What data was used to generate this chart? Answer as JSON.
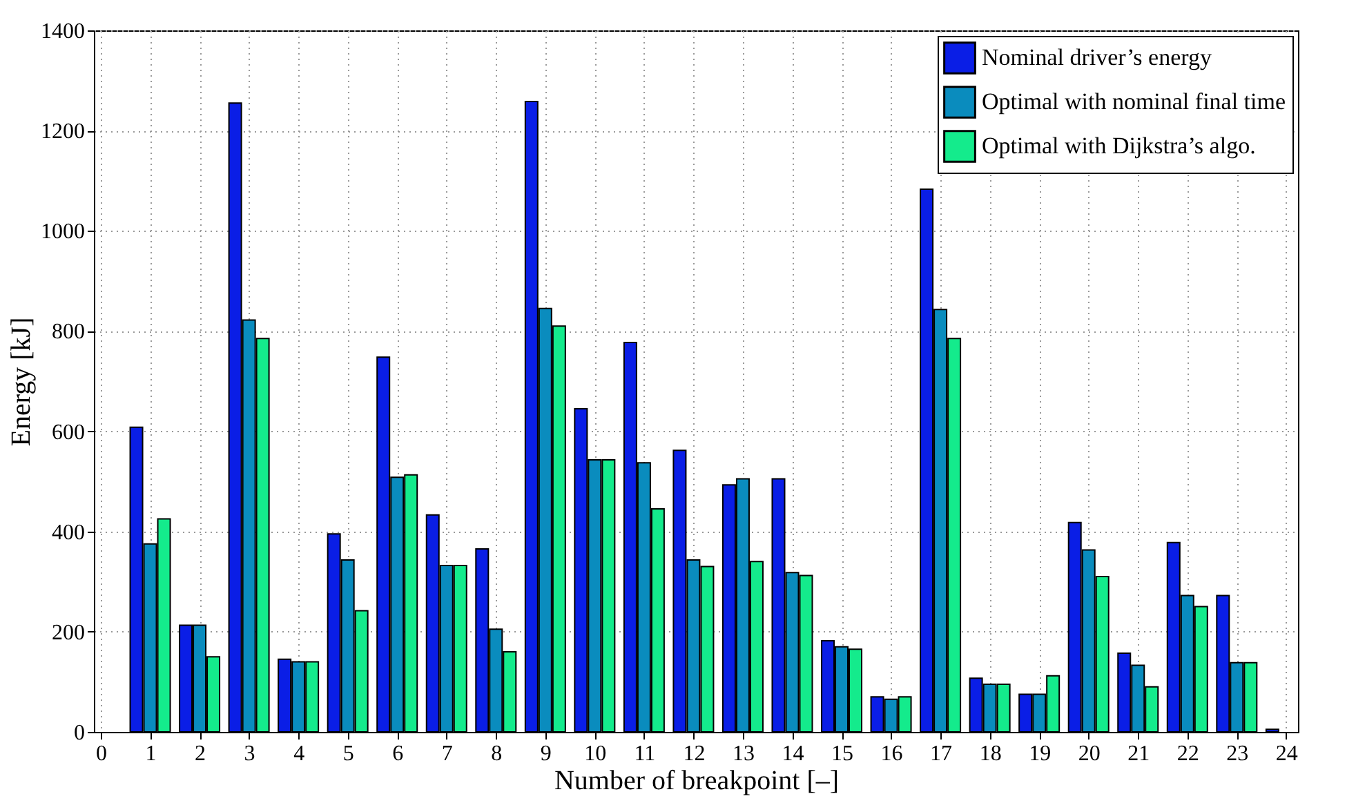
{
  "chart_data": {
    "type": "bar",
    "xlabel": "Number of breakpoint [–]",
    "ylabel": "Energy [kJ]",
    "x": [
      1,
      2,
      3,
      4,
      5,
      6,
      7,
      8,
      9,
      10,
      11,
      12,
      13,
      14,
      15,
      16,
      17,
      18,
      19,
      20,
      21,
      22,
      23,
      24
    ],
    "series": [
      {
        "name": "Nominal driver’s energy",
        "color": "#0a1ee6",
        "values": [
          608,
          213,
          1255,
          145,
          395,
          748,
          433,
          365,
          1258,
          645,
          777,
          562,
          493,
          505,
          182,
          70,
          1083,
          107,
          75,
          418,
          157,
          378,
          272,
          5
        ]
      },
      {
        "name": "Optimal with nominal final time",
        "color": "#0a8cbe",
        "values": [
          375,
          213,
          822,
          140,
          343,
          508,
          332,
          205,
          845,
          543,
          537,
          343,
          505,
          318,
          170,
          65,
          843,
          95,
          75,
          363,
          133,
          272,
          138,
          null
        ]
      },
      {
        "name": "Optimal with Dijkstra’s algo.",
        "color": "#14eb8c",
        "values": [
          425,
          150,
          785,
          140,
          242,
          513,
          332,
          160,
          810,
          543,
          445,
          330,
          340,
          312,
          165,
          70,
          785,
          95,
          112,
          310,
          90,
          250,
          138,
          null
        ]
      }
    ],
    "xlim": [
      0,
      24.1
    ],
    "xticks": [
      0,
      1,
      2,
      3,
      4,
      5,
      6,
      7,
      8,
      9,
      10,
      11,
      12,
      13,
      14,
      15,
      16,
      17,
      18,
      19,
      20,
      21,
      22,
      23,
      24
    ],
    "ylim": [
      0,
      1400
    ],
    "yticks": [
      0,
      200,
      400,
      600,
      800,
      {
        "value": 1000,
        "label": "1000"
      },
      {
        "value": 1200,
        "label": "1200"
      },
      {
        "value": 1400,
        "label": "1400"
      }
    ],
    "grid": true,
    "legend": "top right"
  }
}
